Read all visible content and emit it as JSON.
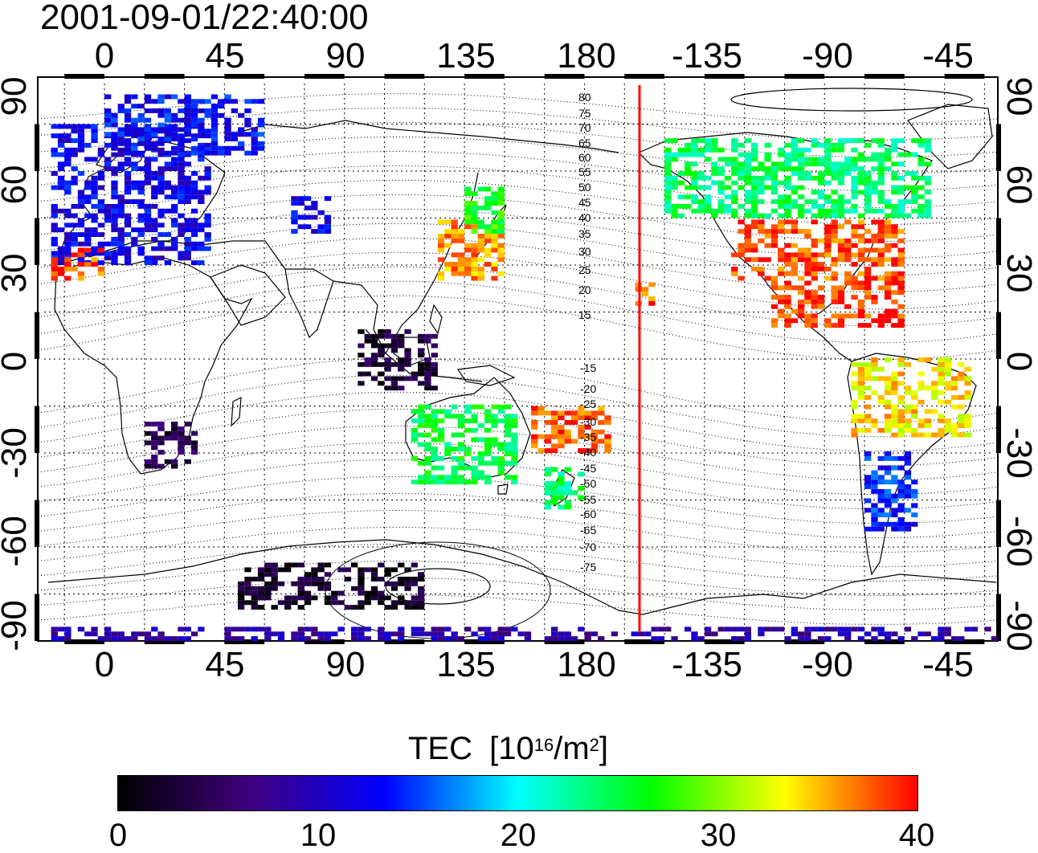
{
  "title": "2001-09-01/22:40:00",
  "top_lon_ticks": [
    "0",
    "45",
    "90",
    "135",
    "180",
    "-135",
    "-90",
    "-45"
  ],
  "bottom_lon_ticks": [
    "0",
    "45",
    "90",
    "135",
    "180",
    "-135",
    "-90",
    "-45"
  ],
  "left_lat_ticks": [
    "90",
    "60",
    "30",
    "0",
    "-30",
    "-60",
    "-90"
  ],
  "right_lat_ticks": [
    "90",
    "60",
    "30",
    "0",
    "-30",
    "-60",
    "-90"
  ],
  "mag_lat_labels_north": [
    "80",
    "75",
    "70",
    "65",
    "60",
    "55",
    "50",
    "45",
    "40",
    "35",
    "30",
    "25",
    "20",
    "15"
  ],
  "mag_lat_labels_south": [
    "-15",
    "-20",
    "-25",
    "-30",
    "-35",
    "-40",
    "-45",
    "-50",
    "-55",
    "-60",
    "-65",
    "-70",
    "-75"
  ],
  "colorbar": {
    "title": "TEC",
    "unit_base": "10",
    "unit_exp": "16",
    "unit_mid": "/m",
    "unit_exp2": "2",
    "ticks": [
      "0",
      "10",
      "20",
      "30",
      "40"
    ],
    "min": 0,
    "max": 40
  },
  "terminator_longitude": 200,
  "colors": {
    "terminator": "#ff0000",
    "grid": "#000000",
    "scale": [
      "#000000",
      "#40007f",
      "#0000ff",
      "#00ffff",
      "#00ff00",
      "#ffff00",
      "#ff0000"
    ]
  },
  "chart_data": {
    "type": "heatmap",
    "x_axis": "geographic longitude",
    "y_axis": "geographic latitude",
    "xlim": [
      -25,
      335
    ],
    "ylim": [
      -90,
      90
    ],
    "value_unit": "10^16/m^2",
    "regions": [
      {
        "name": "europe",
        "lon": [
          -20,
          40
        ],
        "lat": [
          30,
          75
        ],
        "tec": 12
      },
      {
        "name": "european-arctic",
        "lon": [
          0,
          60
        ],
        "lat": [
          65,
          85
        ],
        "tec": 13
      },
      {
        "name": "iberia-westafrica",
        "lon": [
          -20,
          0
        ],
        "lat": [
          25,
          35
        ],
        "tec": 38
      },
      {
        "name": "central-asia",
        "lon": [
          70,
          85
        ],
        "lat": [
          40,
          52
        ],
        "tec": 12
      },
      {
        "name": "japan",
        "lon": [
          125,
          150
        ],
        "lat": [
          25,
          45
        ],
        "tec": 36
      },
      {
        "name": "north-japan",
        "lon": [
          135,
          150
        ],
        "lat": [
          40,
          55
        ],
        "tec": 27
      },
      {
        "name": "hawaii",
        "lon": [
          199,
          207
        ],
        "lat": [
          17,
          24
        ],
        "tec": 38
      },
      {
        "name": "north-america-north",
        "lon": [
          210,
          310
        ],
        "lat": [
          45,
          70
        ],
        "tec": 24
      },
      {
        "name": "north-america-south",
        "lon": [
          235,
          300
        ],
        "lat": [
          25,
          45
        ],
        "tec": 38
      },
      {
        "name": "caribbean-mexico",
        "lon": [
          250,
          300
        ],
        "lat": [
          10,
          25
        ],
        "tec": 39
      },
      {
        "name": "south-america-north",
        "lon": [
          280,
          325
        ],
        "lat": [
          -25,
          0
        ],
        "tec": 34
      },
      {
        "name": "south-america-south",
        "lon": [
          285,
          305
        ],
        "lat": [
          -55,
          -30
        ],
        "tec": 14
      },
      {
        "name": "southern-africa",
        "lon": [
          15,
          35
        ],
        "lat": [
          -35,
          -20
        ],
        "tec": 4
      },
      {
        "name": "australia",
        "lon": [
          115,
          155
        ],
        "lat": [
          -40,
          -15
        ],
        "tec": 25
      },
      {
        "name": "new-zealand",
        "lon": [
          165,
          180
        ],
        "lat": [
          -48,
          -35
        ],
        "tec": 24
      },
      {
        "name": "pacific-islands",
        "lon": [
          160,
          190
        ],
        "lat": [
          -30,
          -15
        ],
        "tec": 38
      },
      {
        "name": "indonesia",
        "lon": [
          95,
          125
        ],
        "lat": [
          -10,
          10
        ],
        "tec": 3
      },
      {
        "name": "antarctica-east",
        "lon": [
          50,
          120
        ],
        "lat": [
          -80,
          -65
        ],
        "tec": 2
      },
      {
        "name": "antarctica-polar",
        "lon": [
          -20,
          335
        ],
        "lat": [
          -90,
          -85
        ],
        "tec": 9
      }
    ]
  }
}
